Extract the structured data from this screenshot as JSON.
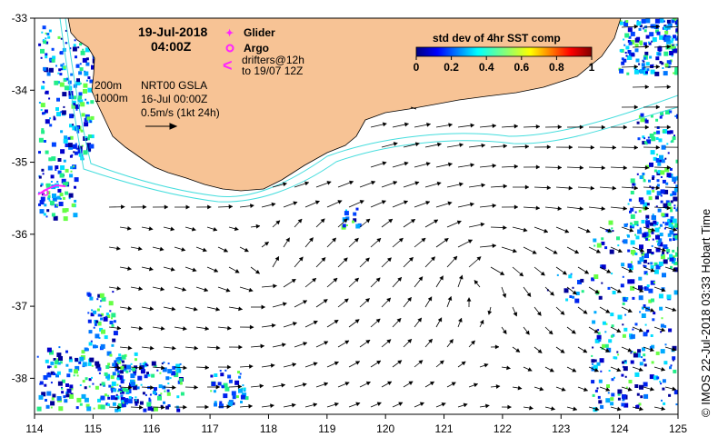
{
  "map": {
    "date": "19-Jul-2018",
    "time": "04:00Z",
    "legend": {
      "glider": "Glider",
      "argo": "Argo",
      "drifters_line1": "drifters@12h",
      "drifters_line2": "to 19/07 12Z"
    },
    "isobaths": {
      "shallow": "200m",
      "deep": "1000m"
    },
    "altimetry": {
      "product": "NRT00 GSLA",
      "date": "16-Jul 00:00Z",
      "scale": "0.5m/s (1kt 24h)"
    },
    "colorbar": {
      "title": "std dev of 4hr SST comp",
      "ticks": [
        "0",
        "0.2",
        "0.4",
        "0.6",
        "0.8",
        "1"
      ]
    },
    "x_ticks": [
      "114",
      "115",
      "116",
      "117",
      "118",
      "119",
      "120",
      "121",
      "122",
      "123",
      "124",
      "125"
    ],
    "y_ticks": [
      "-33",
      "-34",
      "-35",
      "-36",
      "-37",
      "-38"
    ],
    "lon_range": [
      114,
      125
    ],
    "lat_range": [
      -38.5,
      -33
    ],
    "credit": "© IMOS 22-Jul-2018 03:33 Hobart Time",
    "colors": {
      "land": "#f7c395",
      "ocean": "#ffffff",
      "isobath": "#44dddd",
      "glider": "#ff22ff",
      "argo": "#ff22ff",
      "arrows": "#000000"
    }
  }
}
